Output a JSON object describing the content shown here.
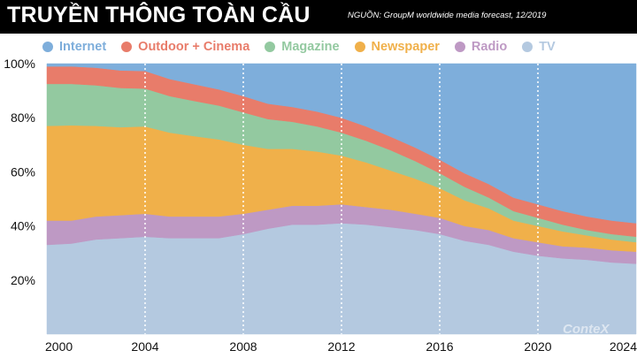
{
  "header": {
    "title": "TRUYỀN THÔNG TOÀN CẦU",
    "source": "NGUỒN: GroupM worldwide media forecast, 12/2019"
  },
  "watermark": "ConteX",
  "chart_data": {
    "type": "area",
    "stacked": true,
    "x": [
      2000,
      2001,
      2002,
      2003,
      2004,
      2005,
      2006,
      2007,
      2008,
      2009,
      2010,
      2011,
      2012,
      2013,
      2014,
      2015,
      2016,
      2017,
      2018,
      2019,
      2020,
      2021,
      2022,
      2023,
      2024
    ],
    "xticks": [
      "2000",
      "2004",
      "2008",
      "2012",
      "2016",
      "2020",
      "2024"
    ],
    "yticks": [
      "20%",
      "40%",
      "60%",
      "80%",
      "100%"
    ],
    "ylim": [
      0,
      100
    ],
    "xlabel": "",
    "ylabel": "",
    "legend_position": "top",
    "grid": "vertical dashed",
    "series": [
      {
        "name": "TV",
        "color": "#b4c9e0",
        "values": [
          33,
          33.5,
          35,
          35.5,
          36,
          35.5,
          35.5,
          35.5,
          37,
          39,
          40.5,
          40.5,
          41,
          40.5,
          39.5,
          38.5,
          37,
          34.5,
          33,
          30.5,
          29,
          28,
          27.5,
          26.5,
          26
        ]
      },
      {
        "name": "Radio",
        "color": "#be99c4",
        "values": [
          9,
          8.5,
          8.5,
          8.5,
          8.5,
          8,
          8,
          8,
          7.5,
          7,
          7,
          7,
          7,
          6.5,
          6.5,
          6,
          6,
          5.5,
          5.5,
          5,
          5,
          4.5,
          4.5,
          4.5,
          4.5
        ]
      },
      {
        "name": "Newspaper",
        "color": "#f0b04a",
        "values": [
          35,
          35.2,
          33.5,
          32.5,
          32.3,
          31,
          29.7,
          28.5,
          25.5,
          22.5,
          21,
          20,
          18,
          16.5,
          14.5,
          13,
          11,
          9.5,
          8,
          6.5,
          6,
          5.5,
          4.5,
          4,
          3.5
        ]
      },
      {
        "name": "Magazine",
        "color": "#93c9a0",
        "values": [
          15.5,
          15.3,
          15,
          14.5,
          14,
          13.5,
          13,
          12.5,
          12,
          11,
          10,
          9.3,
          8.5,
          8,
          7.5,
          6.5,
          5.5,
          5,
          4,
          3.5,
          3,
          2.5,
          2,
          2,
          2
        ]
      },
      {
        "name": "Outdoor + Cinema",
        "color": "#e87c6a",
        "values": [
          6.5,
          6.5,
          6.5,
          6.5,
          6.5,
          6.3,
          6.2,
          6,
          6,
          5.7,
          5.5,
          5.5,
          5.5,
          5.3,
          5,
          5,
          5,
          5,
          5,
          5,
          5,
          5,
          5,
          5,
          5
        ]
      },
      {
        "name": "Internet",
        "color": "#7eaedb",
        "values": [
          1,
          1,
          1.5,
          2.5,
          2.7,
          5.7,
          7.6,
          9.5,
          12,
          14.8,
          16,
          17.7,
          20,
          23.2,
          27,
          31,
          35.5,
          40.5,
          44.5,
          49.5,
          52,
          54.5,
          56.5,
          58,
          59
        ]
      }
    ]
  }
}
